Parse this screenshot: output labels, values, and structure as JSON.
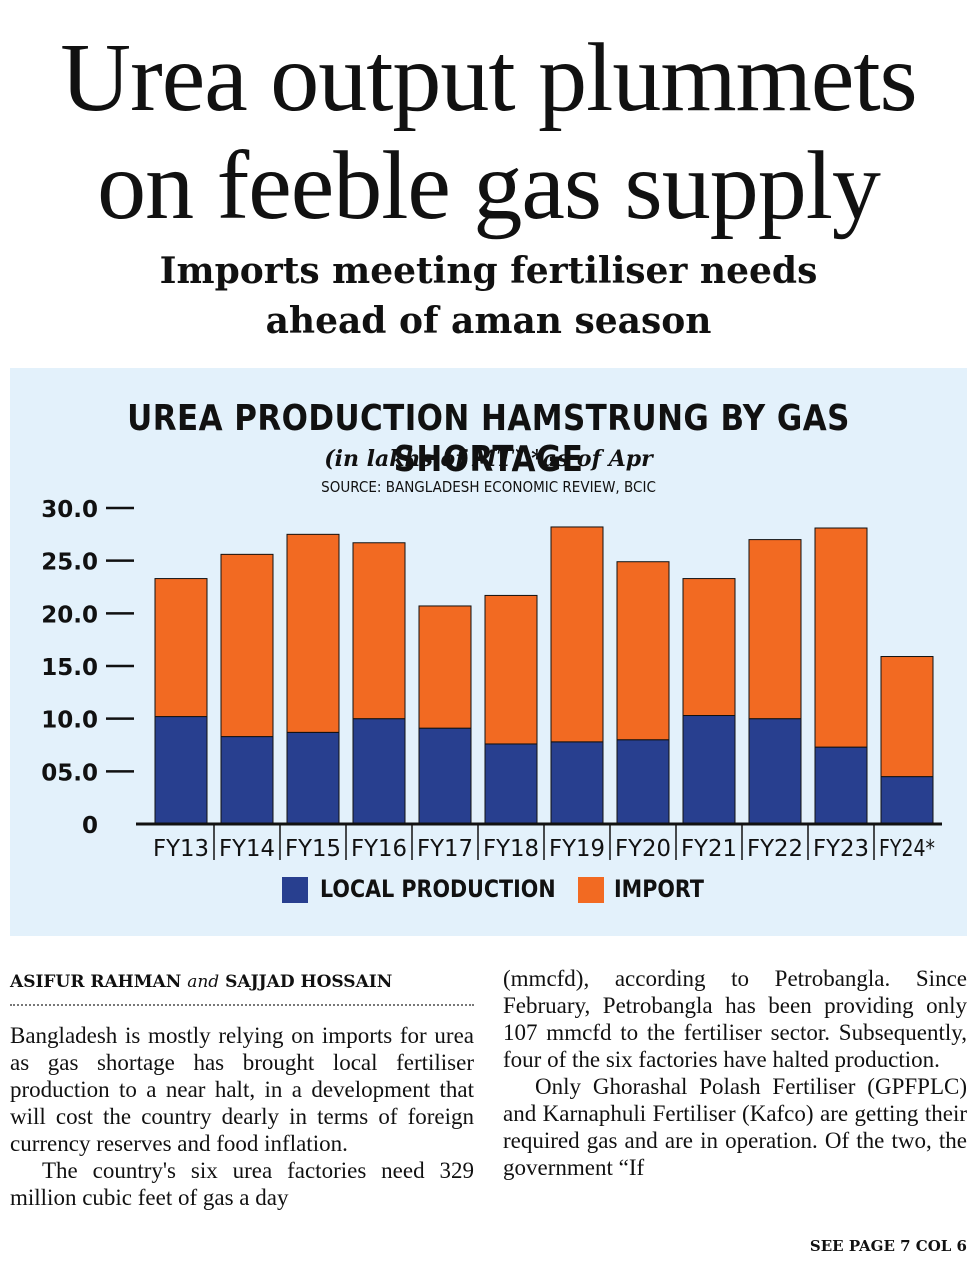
{
  "headline": {
    "line1": "Urea output plummets",
    "line2": "on feeble gas supply"
  },
  "subheadline": {
    "line1": "Imports meeting fertiliser needs",
    "line2": "ahead of aman season"
  },
  "chart_data": {
    "type": "bar",
    "stacked": true,
    "title": "UREA PRODUCTION HAMSTRUNG BY GAS SHORTAGE",
    "subtitle": "(in lakhs of MT) *as of Apr",
    "source": "SOURCE: BANGLADESH ECONOMIC REVIEW, BCIC",
    "categories": [
      "FY13",
      "FY14",
      "FY15",
      "FY16",
      "FY17",
      "FY18",
      "FY19",
      "FY20",
      "FY21",
      "FY22",
      "FY23",
      "FY24*"
    ],
    "series": [
      {
        "name": "LOCAL PRODUCTION",
        "color": "#283f8f",
        "values": [
          10.2,
          8.3,
          8.7,
          10.0,
          9.1,
          7.6,
          7.8,
          8.0,
          10.3,
          10.0,
          7.3,
          4.5
        ]
      },
      {
        "name": "IMPORT",
        "color": "#f26a22",
        "values": [
          13.1,
          17.3,
          18.8,
          16.7,
          11.6,
          14.1,
          20.4,
          16.9,
          13.0,
          17.0,
          20.8,
          11.4
        ]
      }
    ],
    "y_ticks": [
      "0",
      "05.0",
      "10.0",
      "15.0",
      "20.0",
      "25.0",
      "30.0"
    ],
    "y_tick_values": [
      0,
      5,
      10,
      15,
      20,
      25,
      30
    ],
    "ylim": [
      0,
      30
    ],
    "legend": "bottom",
    "grid": false,
    "background": "#e3f1fb"
  },
  "byline": {
    "author1": "ASIFUR RAHMAN",
    "and": "and",
    "author2": "SAJJAD HOSSAIN"
  },
  "article": {
    "col1_p1": "Bangladesh is mostly relying on imports for urea as gas shortage has brought local fertiliser production to a near halt, in a development that will cost the country dearly in terms of foreign currency reserves and food inflation.",
    "col1_p2": "The country's six urea factories need 329 million cubic feet of gas a day",
    "col2_p1": "(mmcfd), according to Petrobangla. Since February, Petrobangla has been providing only 107 mmcfd to the fertiliser sector. Subsequently, four of the six factories have halted production.",
    "col2_p2": "Only Ghorashal Polash Fertiliser (GPFPLC) and Karnaphuli Fertiliser (Kafco) are getting their required gas and are in operation. Of the two, the government “If"
  },
  "continuation": "SEE PAGE 7 COL 6"
}
